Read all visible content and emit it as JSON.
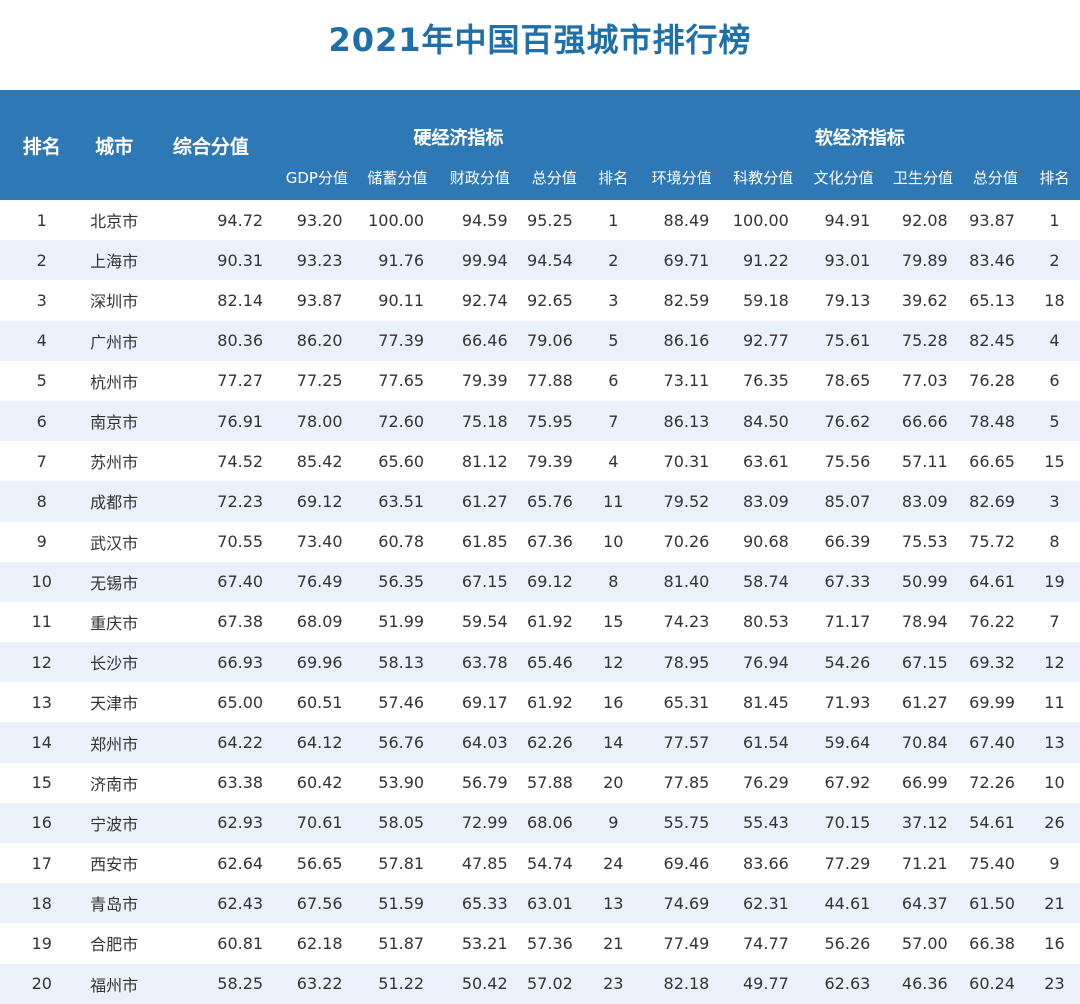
{
  "title": "2021年中国百强城市排行榜",
  "header": {
    "rank": "排名",
    "city": "城市",
    "composite": "综合分值",
    "hard_group": "硬经济指标",
    "soft_group": "软经济指标",
    "hard_cols": [
      "GDP分值",
      "储蓄分值",
      "财政分值",
      "总分值",
      "排名"
    ],
    "soft_cols": [
      "环境分值",
      "科教分值",
      "文化分值",
      "卫生分值",
      "总分值",
      "排名"
    ]
  },
  "rows": [
    [
      "1",
      "北京市",
      "94.72",
      "93.20",
      "100.00",
      "94.59",
      "95.25",
      "1",
      "88.49",
      "100.00",
      "94.91",
      "92.08",
      "93.87",
      "1"
    ],
    [
      "2",
      "上海市",
      "90.31",
      "93.23",
      "91.76",
      "99.94",
      "94.54",
      "2",
      "69.71",
      "91.22",
      "93.01",
      "79.89",
      "83.46",
      "2"
    ],
    [
      "3",
      "深圳市",
      "82.14",
      "93.87",
      "90.11",
      "92.74",
      "92.65",
      "3",
      "82.59",
      "59.18",
      "79.13",
      "39.62",
      "65.13",
      "18"
    ],
    [
      "4",
      "广州市",
      "80.36",
      "86.20",
      "77.39",
      "66.46",
      "79.06",
      "5",
      "86.16",
      "92.77",
      "75.61",
      "75.28",
      "82.45",
      "4"
    ],
    [
      "5",
      "杭州市",
      "77.27",
      "77.25",
      "77.65",
      "79.39",
      "77.88",
      "6",
      "73.11",
      "76.35",
      "78.65",
      "77.03",
      "76.28",
      "6"
    ],
    [
      "6",
      "南京市",
      "76.91",
      "78.00",
      "72.60",
      "75.18",
      "75.95",
      "7",
      "86.13",
      "84.50",
      "76.62",
      "66.66",
      "78.48",
      "5"
    ],
    [
      "7",
      "苏州市",
      "74.52",
      "85.42",
      "65.60",
      "81.12",
      "79.39",
      "4",
      "70.31",
      "63.61",
      "75.56",
      "57.11",
      "66.65",
      "15"
    ],
    [
      "8",
      "成都市",
      "72.23",
      "69.12",
      "63.51",
      "61.27",
      "65.76",
      "11",
      "79.52",
      "83.09",
      "85.07",
      "83.09",
      "82.69",
      "3"
    ],
    [
      "9",
      "武汉市",
      "70.55",
      "73.40",
      "60.78",
      "61.85",
      "67.36",
      "10",
      "70.26",
      "90.68",
      "66.39",
      "75.53",
      "75.72",
      "8"
    ],
    [
      "10",
      "无锡市",
      "67.40",
      "76.49",
      "56.35",
      "67.15",
      "69.12",
      "8",
      "81.40",
      "58.74",
      "67.33",
      "50.99",
      "64.61",
      "19"
    ],
    [
      "11",
      "重庆市",
      "67.38",
      "68.09",
      "51.99",
      "59.54",
      "61.92",
      "15",
      "74.23",
      "80.53",
      "71.17",
      "78.94",
      "76.22",
      "7"
    ],
    [
      "12",
      "长沙市",
      "66.93",
      "69.96",
      "58.13",
      "63.78",
      "65.46",
      "12",
      "78.95",
      "76.94",
      "54.26",
      "67.15",
      "69.32",
      "12"
    ],
    [
      "13",
      "天津市",
      "65.00",
      "60.51",
      "57.46",
      "69.17",
      "61.92",
      "16",
      "65.31",
      "81.45",
      "71.93",
      "61.27",
      "69.99",
      "11"
    ],
    [
      "14",
      "郑州市",
      "64.22",
      "64.12",
      "56.76",
      "64.03",
      "62.26",
      "14",
      "77.57",
      "61.54",
      "59.64",
      "70.84",
      "67.40",
      "13"
    ],
    [
      "15",
      "济南市",
      "63.38",
      "60.42",
      "53.90",
      "56.79",
      "57.88",
      "20",
      "77.85",
      "76.29",
      "67.92",
      "66.99",
      "72.26",
      "10"
    ],
    [
      "16",
      "宁波市",
      "62.93",
      "70.61",
      "58.05",
      "72.99",
      "68.06",
      "9",
      "55.75",
      "55.43",
      "70.15",
      "37.12",
      "54.61",
      "26"
    ],
    [
      "17",
      "西安市",
      "62.64",
      "56.65",
      "57.81",
      "47.85",
      "54.74",
      "24",
      "69.46",
      "83.66",
      "77.29",
      "71.21",
      "75.40",
      "9"
    ],
    [
      "18",
      "青岛市",
      "62.43",
      "67.56",
      "51.59",
      "65.33",
      "63.01",
      "13",
      "74.69",
      "62.31",
      "44.61",
      "64.37",
      "61.50",
      "21"
    ],
    [
      "19",
      "合肥市",
      "60.81",
      "62.18",
      "51.87",
      "53.21",
      "57.36",
      "21",
      "77.49",
      "74.77",
      "56.26",
      "57.00",
      "66.38",
      "16"
    ],
    [
      "20",
      "福州市",
      "58.25",
      "63.22",
      "51.22",
      "50.42",
      "57.02",
      "23",
      "82.18",
      "49.77",
      "62.63",
      "46.36",
      "60.24",
      "23"
    ]
  ]
}
